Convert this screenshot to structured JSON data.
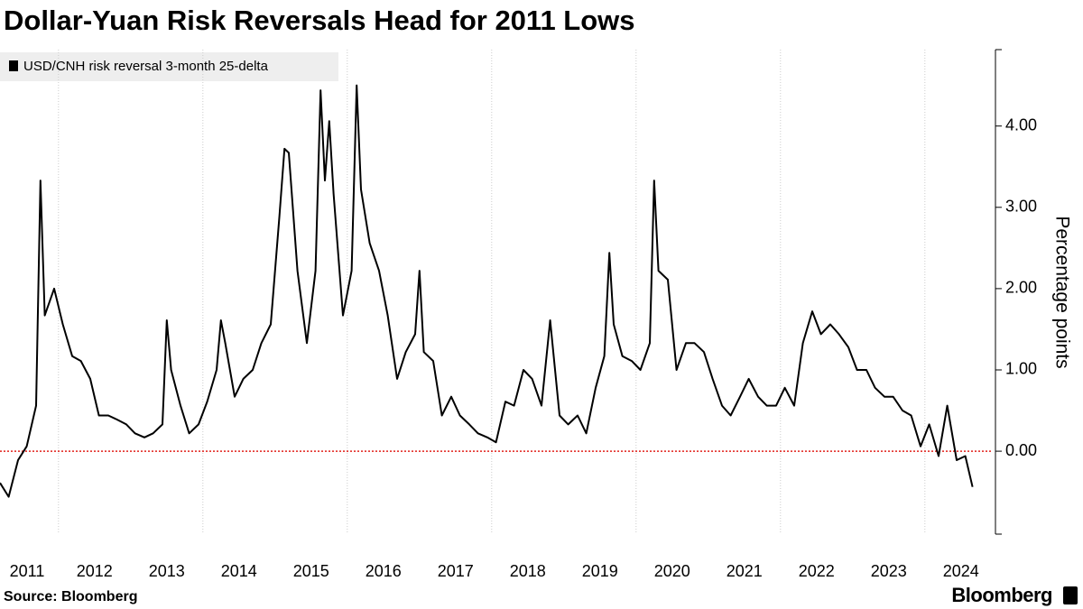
{
  "chart_data": {
    "type": "line",
    "title": "Dollar-Yuan Risk Reversals Head for 2011 Lows",
    "y_axis_label": "Percentage points",
    "source": "Source: Bloomberg",
    "brand": "Bloomberg",
    "x": [
      2011.19,
      2011.31,
      2011.44,
      2011.56,
      2011.69,
      2011.75,
      2011.81,
      2011.94,
      2012.06,
      2012.19,
      2012.31,
      2012.44,
      2012.56,
      2012.69,
      2012.81,
      2012.94,
      2013.06,
      2013.19,
      2013.31,
      2013.44,
      2013.5,
      2013.56,
      2013.69,
      2013.81,
      2013.94,
      2014.06,
      2014.19,
      2014.25,
      2014.31,
      2014.44,
      2014.56,
      2014.69,
      2014.81,
      2014.94,
      2015.06,
      2015.13,
      2015.19,
      2015.31,
      2015.44,
      2015.56,
      2015.63,
      2015.69,
      2015.75,
      2015.81,
      2015.94,
      2016.06,
      2016.13,
      2016.19,
      2016.31,
      2016.44,
      2016.56,
      2016.69,
      2016.81,
      2016.94,
      2017.0,
      2017.06,
      2017.19,
      2017.31,
      2017.44,
      2017.56,
      2017.69,
      2017.81,
      2017.94,
      2018.06,
      2018.19,
      2018.31,
      2018.44,
      2018.56,
      2018.69,
      2018.81,
      2018.94,
      2019.06,
      2019.19,
      2019.31,
      2019.44,
      2019.56,
      2019.63,
      2019.69,
      2019.81,
      2019.94,
      2020.06,
      2020.19,
      2020.25,
      2020.31,
      2020.44,
      2020.56,
      2020.69,
      2020.81,
      2020.94,
      2021.06,
      2021.19,
      2021.31,
      2021.44,
      2021.56,
      2021.69,
      2021.81,
      2021.94,
      2022.06,
      2022.19,
      2022.31,
      2022.44,
      2022.56,
      2022.69,
      2022.81,
      2022.94,
      2023.06,
      2023.19,
      2023.31,
      2023.44,
      2023.56,
      2023.69,
      2023.81,
      2023.94,
      2024.06,
      2024.19,
      2024.31,
      2024.44,
      2024.56,
      2024.66
    ],
    "series": [
      {
        "name": "USD/CNH risk reversal 3-month 25-delta",
        "color": "#000000",
        "values": [
          -0.39,
          -0.56,
          -0.11,
          0.06,
          0.56,
          3.33,
          1.67,
          2.0,
          1.56,
          1.17,
          1.11,
          0.89,
          0.44,
          0.44,
          0.39,
          0.33,
          0.22,
          0.17,
          0.22,
          0.33,
          1.61,
          1.0,
          0.56,
          0.22,
          0.33,
          0.61,
          1.0,
          1.61,
          1.33,
          0.67,
          0.89,
          1.0,
          1.33,
          1.56,
          2.89,
          3.72,
          3.67,
          2.22,
          1.33,
          2.22,
          4.44,
          3.33,
          4.06,
          3.17,
          1.67,
          2.22,
          4.5,
          3.22,
          2.56,
          2.22,
          1.67,
          0.89,
          1.22,
          1.44,
          2.22,
          1.22,
          1.11,
          0.44,
          0.67,
          0.44,
          0.33,
          0.22,
          0.17,
          0.11,
          0.61,
          0.56,
          1.0,
          0.89,
          0.56,
          1.61,
          0.44,
          0.33,
          0.44,
          0.22,
          0.78,
          1.17,
          2.44,
          1.56,
          1.17,
          1.11,
          1.0,
          1.33,
          3.33,
          2.22,
          2.11,
          1.0,
          1.33,
          1.33,
          1.22,
          0.89,
          0.56,
          0.44,
          0.67,
          0.89,
          0.67,
          0.56,
          0.56,
          0.78,
          0.56,
          1.33,
          1.72,
          1.44,
          1.56,
          1.44,
          1.28,
          1.0,
          1.0,
          0.78,
          0.67,
          0.67,
          0.5,
          0.44,
          0.06,
          0.33,
          -0.06,
          0.56,
          -0.11,
          -0.06,
          -0.44
        ]
      }
    ],
    "xlim": [
      2011.19,
      2024.94
    ],
    "xticks": [
      {
        "value": 2011.5,
        "label": "2011"
      },
      {
        "value": 2012.5,
        "label": "2012"
      },
      {
        "value": 2013.5,
        "label": "2013"
      },
      {
        "value": 2014.5,
        "label": "2014"
      },
      {
        "value": 2015.5,
        "label": "2015"
      },
      {
        "value": 2016.5,
        "label": "2016"
      },
      {
        "value": 2017.5,
        "label": "2017"
      },
      {
        "value": 2018.5,
        "label": "2018"
      },
      {
        "value": 2019.5,
        "label": "2019"
      },
      {
        "value": 2020.5,
        "label": "2020"
      },
      {
        "value": 2021.5,
        "label": "2021"
      },
      {
        "value": 2022.5,
        "label": "2022"
      },
      {
        "value": 2023.5,
        "label": "2023"
      },
      {
        "value": 2024.5,
        "label": "2024"
      }
    ],
    "xgrid": [
      2012,
      2014,
      2016,
      2018,
      2020,
      2022,
      2024
    ],
    "ylim": [
      -1.02,
      4.94
    ],
    "yticks": [
      {
        "value": 0,
        "label": "0.00"
      },
      {
        "value": 1,
        "label": "1.00"
      },
      {
        "value": 2,
        "label": "2.00"
      },
      {
        "value": 3,
        "label": "3.00"
      },
      {
        "value": 4,
        "label": "4.00"
      }
    ],
    "zero_line_color": "#e0201b",
    "legend": "top-left"
  }
}
